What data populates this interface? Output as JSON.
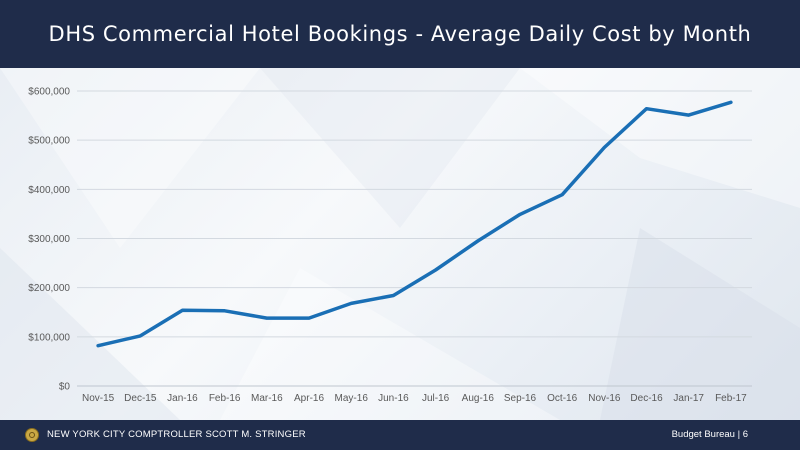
{
  "header": {
    "title": "DHS Commercial Hotel Bookings - Average Daily Cost by Month"
  },
  "footer": {
    "left_text": "NEW YORK CITY COMPTROLLER SCOTT M. STRINGER",
    "right_text": "Budget Bureau | 6"
  },
  "colors": {
    "line": "#1a6fb5",
    "header_bg": "#1f2c4a",
    "grid": "#d3d9e0"
  },
  "chart_data": {
    "type": "line",
    "title": "DHS Commercial Hotel Bookings - Average Daily Cost by Month",
    "xlabel": "",
    "ylabel": "",
    "categories": [
      "Nov-15",
      "Dec-15",
      "Jan-16",
      "Feb-16",
      "Mar-16",
      "Apr-16",
      "May-16",
      "Jun-16",
      "Jul-16",
      "Aug-16",
      "Sep-16",
      "Oct-16",
      "Nov-16",
      "Dec-16",
      "Jan-17",
      "Feb-17"
    ],
    "series": [
      {
        "values": [
          82000,
          102000,
          154000,
          153000,
          138000,
          138000,
          168000,
          184000,
          236000,
          295000,
          349000,
          389000,
          485000,
          564000,
          551000,
          577000
        ]
      }
    ],
    "ylim": [
      0,
      600000
    ],
    "yticks": [
      0,
      100000,
      200000,
      300000,
      400000,
      500000,
      600000
    ],
    "ytick_labels": [
      "$0",
      "$100,000",
      "$200,000",
      "$300,000",
      "$400,000",
      "$500,000",
      "$600,000"
    ],
    "grid": true,
    "legend": "none"
  }
}
